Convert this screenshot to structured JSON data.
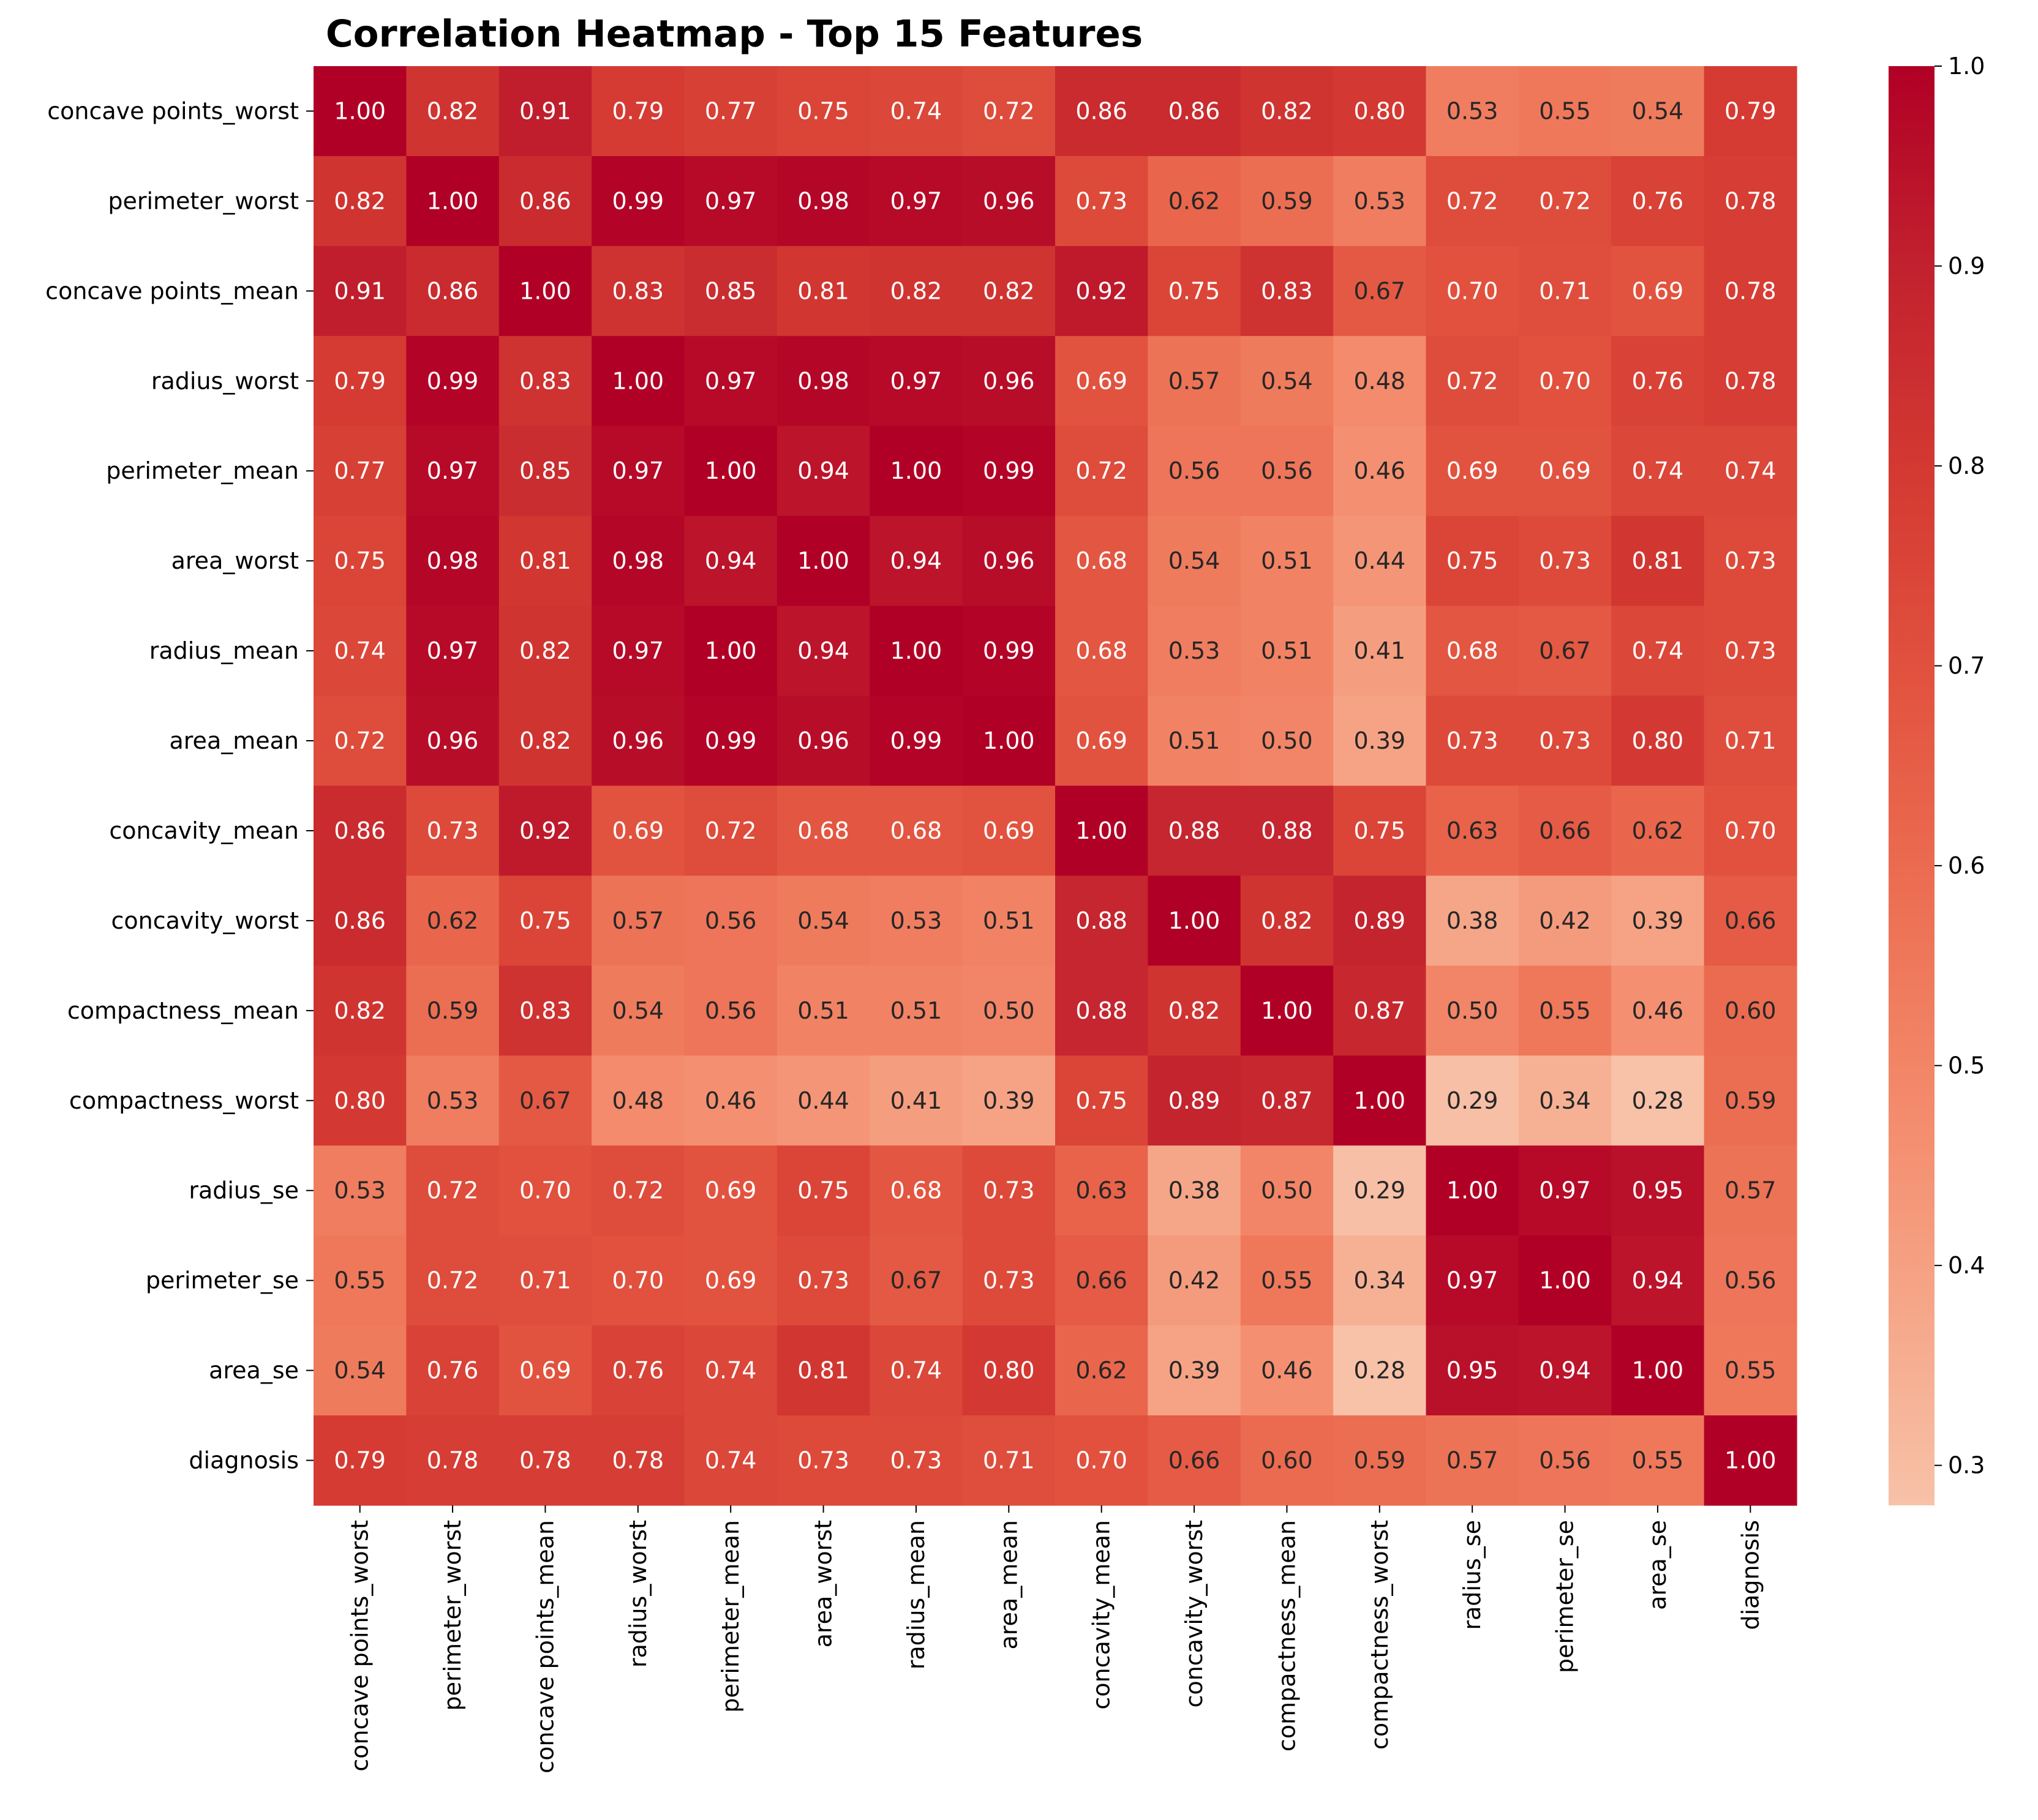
{
  "chart_data": {
    "type": "heatmap",
    "title": "Correlation Heatmap - Top 15 Features",
    "xlabel": "",
    "ylabel": "",
    "labels": [
      "concave points_worst",
      "perimeter_worst",
      "concave points_mean",
      "radius_worst",
      "perimeter_mean",
      "area_worst",
      "radius_mean",
      "area_mean",
      "concavity_mean",
      "concavity_worst",
      "compactness_mean",
      "compactness_worst",
      "radius_se",
      "perimeter_se",
      "area_se",
      "diagnosis"
    ],
    "values": [
      [
        1.0,
        0.82,
        0.91,
        0.79,
        0.77,
        0.75,
        0.74,
        0.72,
        0.86,
        0.86,
        0.82,
        0.8,
        0.53,
        0.55,
        0.54,
        0.79
      ],
      [
        0.82,
        1.0,
        0.86,
        0.99,
        0.97,
        0.98,
        0.97,
        0.96,
        0.73,
        0.62,
        0.59,
        0.53,
        0.72,
        0.72,
        0.76,
        0.78
      ],
      [
        0.91,
        0.86,
        1.0,
        0.83,
        0.85,
        0.81,
        0.82,
        0.82,
        0.92,
        0.75,
        0.83,
        0.67,
        0.7,
        0.71,
        0.69,
        0.78
      ],
      [
        0.79,
        0.99,
        0.83,
        1.0,
        0.97,
        0.98,
        0.97,
        0.96,
        0.69,
        0.57,
        0.54,
        0.48,
        0.72,
        0.7,
        0.76,
        0.78
      ],
      [
        0.77,
        0.97,
        0.85,
        0.97,
        1.0,
        0.94,
        1.0,
        0.99,
        0.72,
        0.56,
        0.56,
        0.46,
        0.69,
        0.69,
        0.74,
        0.74
      ],
      [
        0.75,
        0.98,
        0.81,
        0.98,
        0.94,
        1.0,
        0.94,
        0.96,
        0.68,
        0.54,
        0.51,
        0.44,
        0.75,
        0.73,
        0.81,
        0.73
      ],
      [
        0.74,
        0.97,
        0.82,
        0.97,
        1.0,
        0.94,
        1.0,
        0.99,
        0.68,
        0.53,
        0.51,
        0.41,
        0.68,
        0.67,
        0.74,
        0.73
      ],
      [
        0.72,
        0.96,
        0.82,
        0.96,
        0.99,
        0.96,
        0.99,
        1.0,
        0.69,
        0.51,
        0.5,
        0.39,
        0.73,
        0.73,
        0.8,
        0.71
      ],
      [
        0.86,
        0.73,
        0.92,
        0.69,
        0.72,
        0.68,
        0.68,
        0.69,
        1.0,
        0.88,
        0.88,
        0.75,
        0.63,
        0.66,
        0.62,
        0.7
      ],
      [
        0.86,
        0.62,
        0.75,
        0.57,
        0.56,
        0.54,
        0.53,
        0.51,
        0.88,
        1.0,
        0.82,
        0.89,
        0.38,
        0.42,
        0.39,
        0.66
      ],
      [
        0.82,
        0.59,
        0.83,
        0.54,
        0.56,
        0.51,
        0.51,
        0.5,
        0.88,
        0.82,
        1.0,
        0.87,
        0.5,
        0.55,
        0.46,
        0.6
      ],
      [
        0.8,
        0.53,
        0.67,
        0.48,
        0.46,
        0.44,
        0.41,
        0.39,
        0.75,
        0.89,
        0.87,
        1.0,
        0.29,
        0.34,
        0.28,
        0.59
      ],
      [
        0.53,
        0.72,
        0.7,
        0.72,
        0.69,
        0.75,
        0.68,
        0.73,
        0.63,
        0.38,
        0.5,
        0.29,
        1.0,
        0.97,
        0.95,
        0.57
      ],
      [
        0.55,
        0.72,
        0.71,
        0.7,
        0.69,
        0.73,
        0.67,
        0.73,
        0.66,
        0.42,
        0.55,
        0.34,
        0.97,
        1.0,
        0.94,
        0.56
      ],
      [
        0.54,
        0.76,
        0.69,
        0.76,
        0.74,
        0.81,
        0.74,
        0.8,
        0.62,
        0.39,
        0.46,
        0.28,
        0.95,
        0.94,
        1.0,
        0.55
      ],
      [
        0.79,
        0.78,
        0.78,
        0.78,
        0.74,
        0.73,
        0.73,
        0.71,
        0.7,
        0.66,
        0.6,
        0.59,
        0.57,
        0.56,
        0.55,
        1.0
      ]
    ],
    "value_format": "0.00",
    "color_range": [
      0.28,
      1.0
    ],
    "colormap": [
      "#f7c2a8",
      "#f6a587",
      "#f3896a",
      "#ec6e52",
      "#e2533f",
      "#d43a32",
      "#c2222e",
      "#b10026"
    ],
    "colorbar_ticks": [
      0.3,
      0.4,
      0.5,
      0.6,
      0.7,
      0.8,
      0.9,
      1.0
    ],
    "colorbar_tick_labels": [
      "0.3",
      "0.4",
      "0.5",
      "0.6",
      "0.7",
      "0.8",
      "0.9",
      "1.0"
    ],
    "grid": false,
    "colorbar_position": "right"
  }
}
